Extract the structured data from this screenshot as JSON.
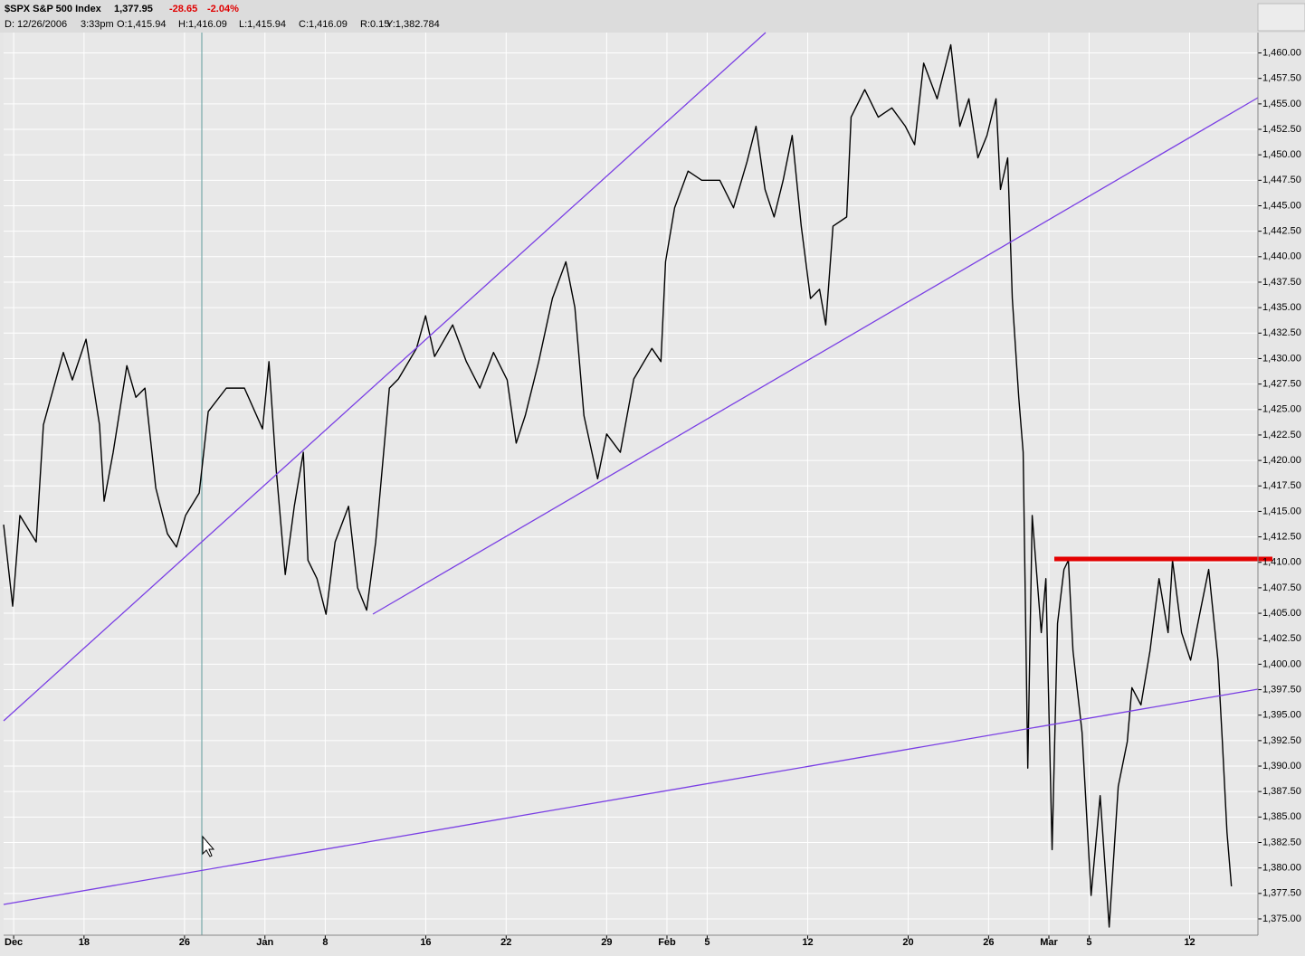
{
  "header": {
    "title": "$SPX S&P 500 Index",
    "last": "1,377.95",
    "change": "-28.65",
    "change_pct": "-2.04%",
    "date": "D: 12/26/2006",
    "time": "3:33pm",
    "open": "O:1,415.94",
    "high": "H:1,416.09",
    "low": "L:1,415.94",
    "close": "C:1,416.09",
    "range": "R:0.15",
    "y_value": "Y:1,382.784"
  },
  "chart_data": {
    "type": "line",
    "x": [
      0,
      0.45,
      0.81,
      1.62,
      1.98,
      2.97,
      3.42,
      4.1,
      4.77,
      5.0,
      5.45,
      6.13,
      6.58,
      7.03,
      7.57,
      8.15,
      8.6,
      9.05,
      9.73,
      10.18,
      11.08,
      11.98,
      12.88,
      13.2,
      13.56,
      14.01,
      14.46,
      14.91,
      15.14,
      15.59,
      16.04,
      16.49,
      17.16,
      17.61,
      18.06,
      18.51,
      19.19,
      19.64,
      20.54,
      20.99,
      21.44,
      22.34,
      23.02,
      23.69,
      24.37,
      25.05,
      25.5,
      25.95,
      26.62,
      27.3,
      27.97,
      28.42,
      28.87,
      29.55,
      30.0,
      30.68,
      31.35,
      32.25,
      32.7,
      32.93,
      33.38,
      34.05,
      34.73,
      35.63,
      36.31,
      36.98,
      37.43,
      37.88,
      38.33,
      38.78,
      39.23,
      39.68,
      40.14,
      40.59,
      40.9,
      41.26,
      41.94,
      42.16,
      42.84,
      43.51,
      44.19,
      44.86,
      45.32,
      45.77,
      46.44,
      47.12,
      47.57,
      48.02,
      48.47,
      48.92,
      49.37,
      49.59,
      49.95,
      50.18,
      50.5,
      50.72,
      50.95,
      51.17,
      51.62,
      51.85,
      52.16,
      52.43,
      52.75,
      52.97,
      53.2,
      53.65,
      54.1,
      54.55,
      55.0,
      55.45,
      55.9,
      56.13,
      56.58,
      57.03,
      57.48,
      57.93,
      58.15,
      58.6,
      59.05,
      59.5,
      59.95,
      60.41,
      60.63,
      60.86,
      61.08
    ],
    "series": [
      {
        "color": "#000000",
        "values": [
          1413.7,
          1405.7,
          1414.6,
          1412.0,
          1423.5,
          1430.6,
          1427.9,
          1431.9,
          1423.5,
          1416.0,
          1420.8,
          1429.3,
          1426.2,
          1427.1,
          1417.3,
          1412.8,
          1411.5,
          1414.6,
          1416.8,
          1424.8,
          1427.1,
          1427.1,
          1423.1,
          1429.7,
          1419.1,
          1408.8,
          1415.5,
          1420.8,
          1410.2,
          1408.4,
          1404.9,
          1412.0,
          1415.5,
          1407.5,
          1405.3,
          1412.0,
          1427.1,
          1428.0,
          1431.0,
          1434.2,
          1430.2,
          1433.3,
          1429.7,
          1427.1,
          1430.6,
          1427.9,
          1421.7,
          1424.4,
          1429.7,
          1435.9,
          1439.5,
          1435.0,
          1424.4,
          1418.2,
          1422.6,
          1420.8,
          1428.0,
          1431.0,
          1429.7,
          1439.5,
          1444.8,
          1448.4,
          1447.5,
          1447.5,
          1444.8,
          1449.3,
          1452.8,
          1446.6,
          1443.9,
          1447.5,
          1451.9,
          1443.0,
          1435.9,
          1436.8,
          1433.3,
          1443.0,
          1443.9,
          1453.7,
          1456.4,
          1453.7,
          1454.6,
          1452.8,
          1451.0,
          1459.0,
          1455.5,
          1460.8,
          1452.8,
          1455.5,
          1449.7,
          1451.9,
          1455.5,
          1446.6,
          1449.7,
          1435.9,
          1426.2,
          1420.8,
          1389.8,
          1414.6,
          1403.1,
          1408.4,
          1381.8,
          1404.0,
          1409.3,
          1410.2,
          1401.3,
          1393.3,
          1377.3,
          1387.1,
          1374.2,
          1388.0,
          1392.4,
          1397.7,
          1396.0,
          1401.3,
          1408.4,
          1403.1,
          1410.2,
          1403.1,
          1400.4,
          1404.9,
          1409.3,
          1400.4,
          1392.4,
          1383.5,
          1378.2
        ]
      }
    ],
    "xlim": [
      0,
      62.4
    ],
    "xticks": [
      {
        "value": 0.5,
        "label": "Dec"
      },
      {
        "value": 4,
        "label": "18"
      },
      {
        "value": 9,
        "label": "26"
      },
      {
        "value": 13,
        "label": "Jan"
      },
      {
        "value": 16,
        "label": "8"
      },
      {
        "value": 21,
        "label": "16"
      },
      {
        "value": 25,
        "label": "22"
      },
      {
        "value": 30,
        "label": "29"
      },
      {
        "value": 33,
        "label": "Feb"
      },
      {
        "value": 35,
        "label": "5"
      },
      {
        "value": 40,
        "label": "12"
      },
      {
        "value": 45,
        "label": "20"
      },
      {
        "value": 49,
        "label": "26"
      },
      {
        "value": 52,
        "label": "Mar"
      },
      {
        "value": 54,
        "label": "5"
      },
      {
        "value": 59,
        "label": "12"
      }
    ],
    "ylim": [
      1373.4,
      1462.0
    ],
    "yticks": [
      {
        "value": 1375,
        "label": "1,375.00"
      },
      {
        "value": 1377.5,
        "label": "1,377.50"
      },
      {
        "value": 1380,
        "label": "1,380.00"
      },
      {
        "value": 1382.5,
        "label": "1,382.50"
      },
      {
        "value": 1385,
        "label": "1,385.00"
      },
      {
        "value": 1387.5,
        "label": "1,387.50"
      },
      {
        "value": 1390,
        "label": "1,390.00"
      },
      {
        "value": 1392.5,
        "label": "1,392.50"
      },
      {
        "value": 1395,
        "label": "1,395.00"
      },
      {
        "value": 1397.5,
        "label": "1,397.50"
      },
      {
        "value": 1400,
        "label": "1,400.00"
      },
      {
        "value": 1402.5,
        "label": "1,402.50"
      },
      {
        "value": 1405,
        "label": "1,405.00"
      },
      {
        "value": 1407.5,
        "label": "1,407.50"
      },
      {
        "value": 1410,
        "label": "1,410.00"
      },
      {
        "value": 1412.5,
        "label": "1,412.50"
      },
      {
        "value": 1415,
        "label": "1,415.00"
      },
      {
        "value": 1417.5,
        "label": "1,417.50"
      },
      {
        "value": 1420,
        "label": "1,420.00"
      },
      {
        "value": 1422.5,
        "label": "1,422.50"
      },
      {
        "value": 1425,
        "label": "1,425.00"
      },
      {
        "value": 1427.5,
        "label": "1,427.50"
      },
      {
        "value": 1430,
        "label": "1,430.00"
      },
      {
        "value": 1432.5,
        "label": "1,432.50"
      },
      {
        "value": 1435,
        "label": "1,435.00"
      },
      {
        "value": 1437.5,
        "label": "1,437.50"
      },
      {
        "value": 1440,
        "label": "1,440.00"
      },
      {
        "value": 1442.5,
        "label": "1,442.50"
      },
      {
        "value": 1445,
        "label": "1,445.00"
      },
      {
        "value": 1447.5,
        "label": "1,447.50"
      },
      {
        "value": 1450,
        "label": "1,450.00"
      },
      {
        "value": 1452.5,
        "label": "1,452.50"
      },
      {
        "value": 1455,
        "label": "1,455.00"
      },
      {
        "value": 1457.5,
        "label": "1,457.50"
      },
      {
        "value": 1460,
        "label": "1,460.00"
      }
    ],
    "grid": true
  }
}
